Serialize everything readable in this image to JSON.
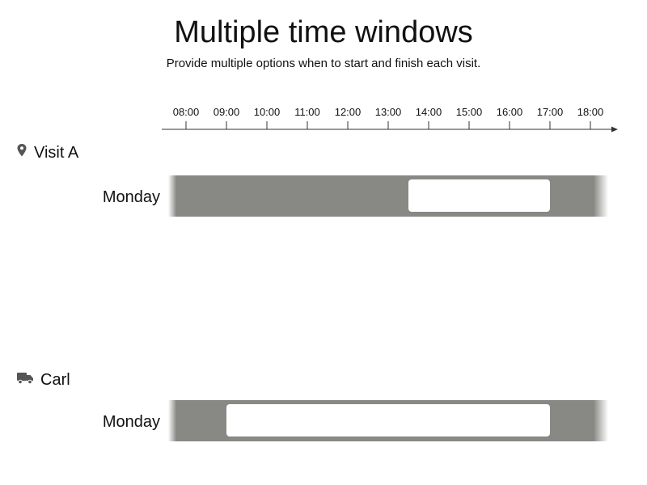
{
  "title": "Multiple time windows",
  "subtitle": "Provide multiple options when to start and finish each visit.",
  "timeline": {
    "ticks": [
      "08:00",
      "09:00",
      "10:00",
      "11:00",
      "12:00",
      "13:00",
      "14:00",
      "15:00",
      "16:00",
      "17:00",
      "18:00"
    ]
  },
  "rows": [
    {
      "entity": "Visit A",
      "icon": "map-pin-icon",
      "day": "Monday",
      "window": {
        "start_hour": 13.5,
        "end_hour": 17.0
      }
    },
    {
      "entity": "Carl",
      "icon": "truck-icon",
      "day": "Monday",
      "window": {
        "start_hour": 9.0,
        "end_hour": 17.0
      }
    }
  ],
  "colors": {
    "track": "#888884",
    "window": "#ffffff",
    "icon": "#555555"
  }
}
